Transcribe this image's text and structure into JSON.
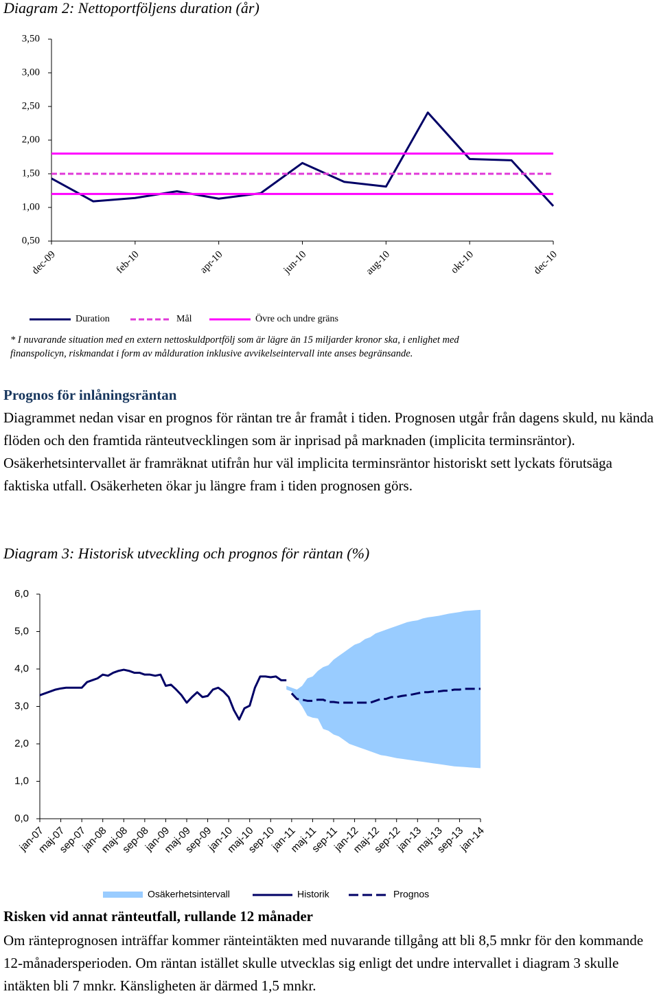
{
  "chart_data": [
    {
      "type": "line",
      "title": "Diagram 2: Nettoportföljens duration (år)",
      "categories": [
        "dec-09",
        null,
        "feb-10",
        null,
        "apr-10",
        null,
        "jun-10",
        null,
        "aug-10",
        null,
        "okt-10",
        null,
        "dec-10"
      ],
      "series": [
        {
          "name": "Duration",
          "color": "#000066",
          "style": "solid",
          "values": [
            1.43,
            1.09,
            1.14,
            1.24,
            1.13,
            1.21,
            1.66,
            1.38,
            1.31,
            2.41,
            1.72,
            1.7,
            1.02
          ]
        },
        {
          "name": "Mål",
          "color": "#e03ad8",
          "style": "dashed",
          "values": [
            1.5,
            1.5,
            1.5,
            1.5,
            1.5,
            1.5,
            1.5,
            1.5,
            1.5,
            1.5,
            1.5,
            1.5,
            1.5
          ]
        },
        {
          "name": "Övre och undre gräns",
          "color": "#ff00ff",
          "style": "solid",
          "values": [
            1.8,
            1.8,
            1.8,
            1.8,
            1.8,
            1.8,
            1.8,
            1.8,
            1.8,
            1.8,
            1.8,
            1.8,
            1.8
          ],
          "lower_values": [
            1.2,
            1.2,
            1.2,
            1.2,
            1.2,
            1.2,
            1.2,
            1.2,
            1.2,
            1.2,
            1.2,
            1.2,
            1.2
          ]
        }
      ],
      "ylim": [
        0.5,
        3.5
      ],
      "yticks": [
        {
          "value": 0.5,
          "label": "0,50"
        },
        {
          "value": 1,
          "label": "1,00"
        },
        {
          "value": 1.5,
          "label": "1,50"
        },
        {
          "value": 2,
          "label": "2,00"
        },
        {
          "value": 2.5,
          "label": "2,50"
        },
        {
          "value": 3,
          "label": "3,00"
        },
        {
          "value": 3.5,
          "label": "3,50"
        }
      ],
      "grid": false
    },
    {
      "type": "line",
      "title": "Diagram 3: Historisk utveckling och prognos för räntan (%)",
      "categories": [
        "jan-07",
        null,
        null,
        null,
        "maj-07",
        null,
        null,
        null,
        "sep-07",
        null,
        null,
        null,
        "jan-08",
        null,
        null,
        null,
        "maj-08",
        null,
        null,
        null,
        "sep-08",
        null,
        null,
        null,
        "jan-09",
        null,
        null,
        null,
        "maj-09",
        null,
        null,
        null,
        "sep-09",
        null,
        null,
        null,
        "jan-10",
        null,
        null,
        null,
        "maj-10",
        null,
        null,
        null,
        "sep-10",
        null,
        null,
        null,
        "jan-11",
        null,
        null,
        null,
        "maj-11",
        null,
        null,
        null,
        "sep-11",
        null,
        null,
        null,
        "jan-12",
        null,
        null,
        null,
        "maj-12",
        null,
        null,
        null,
        "sep-12",
        null,
        null,
        null,
        "jan-13",
        null,
        null,
        null,
        "maj-13",
        null,
        null,
        null,
        "sep-13",
        null,
        null,
        null,
        "jan-14"
      ],
      "series": [
        {
          "name": "Osäkerhetsintervall",
          "color": "#99ccff",
          "style": "area",
          "values": [
            null,
            null,
            null,
            null,
            null,
            null,
            null,
            null,
            null,
            null,
            null,
            null,
            null,
            null,
            null,
            null,
            null,
            null,
            null,
            null,
            null,
            null,
            null,
            null,
            null,
            null,
            null,
            null,
            null,
            null,
            null,
            null,
            null,
            null,
            null,
            null,
            null,
            null,
            null,
            null,
            null,
            null,
            null,
            null,
            null,
            null,
            null,
            3.55,
            3.5,
            3.45,
            3.55,
            3.75,
            3.8,
            3.95,
            4.05,
            4.1,
            4.25,
            4.35,
            4.45,
            4.55,
            4.65,
            4.7,
            4.8,
            4.85,
            4.95,
            5.0,
            5.05,
            5.1,
            5.15,
            5.2,
            5.25,
            5.28,
            5.3,
            5.35,
            5.38,
            5.4,
            5.42,
            5.45,
            5.48,
            5.5,
            5.52,
            5.55,
            5.56,
            5.57,
            5.58
          ],
          "lower": [
            null,
            null,
            null,
            null,
            null,
            null,
            null,
            null,
            null,
            null,
            null,
            null,
            null,
            null,
            null,
            null,
            null,
            null,
            null,
            null,
            null,
            null,
            null,
            null,
            null,
            null,
            null,
            null,
            null,
            null,
            null,
            null,
            null,
            null,
            null,
            null,
            null,
            null,
            null,
            null,
            null,
            null,
            null,
            null,
            null,
            null,
            null,
            3.45,
            3.4,
            3.2,
            3.0,
            2.75,
            2.7,
            2.68,
            2.4,
            2.35,
            2.25,
            2.2,
            2.1,
            2.0,
            1.95,
            1.9,
            1.85,
            1.8,
            1.75,
            1.7,
            1.68,
            1.65,
            1.62,
            1.6,
            1.58,
            1.56,
            1.54,
            1.52,
            1.5,
            1.48,
            1.46,
            1.44,
            1.42,
            1.4,
            1.39,
            1.38,
            1.37,
            1.36,
            1.35
          ]
        },
        {
          "name": "Historik",
          "color": "#000066",
          "style": "solid",
          "values": [
            3.3,
            3.35,
            3.4,
            3.45,
            3.48,
            3.5,
            3.5,
            3.5,
            3.5,
            3.65,
            3.7,
            3.75,
            3.85,
            3.82,
            3.9,
            3.95,
            3.98,
            3.95,
            3.9,
            3.9,
            3.85,
            3.85,
            3.82,
            3.85,
            3.55,
            3.58,
            3.45,
            3.3,
            3.1,
            3.25,
            3.38,
            3.25,
            3.28,
            3.45,
            3.5,
            3.4,
            3.25,
            2.9,
            2.65,
            2.95,
            3.02,
            3.5,
            3.8,
            3.8,
            3.78,
            3.8,
            3.7,
            3.7,
            null,
            null,
            null,
            null,
            null,
            null,
            null,
            null,
            null,
            null,
            null,
            null,
            null,
            null,
            null,
            null,
            null,
            null,
            null,
            null,
            null,
            null,
            null,
            null,
            null,
            null,
            null,
            null,
            null,
            null,
            null,
            null,
            null,
            null,
            null,
            null,
            null
          ]
        },
        {
          "name": "Prognos",
          "color": "#000066",
          "style": "dashed",
          "values": [
            null,
            null,
            null,
            null,
            null,
            null,
            null,
            null,
            null,
            null,
            null,
            null,
            null,
            null,
            null,
            null,
            null,
            null,
            null,
            null,
            null,
            null,
            null,
            null,
            null,
            null,
            null,
            null,
            null,
            null,
            null,
            null,
            null,
            null,
            null,
            null,
            null,
            null,
            null,
            null,
            null,
            null,
            null,
            null,
            null,
            null,
            null,
            null,
            3.35,
            3.2,
            3.18,
            3.15,
            3.15,
            3.18,
            3.18,
            3.12,
            3.12,
            3.1,
            3.1,
            3.1,
            3.1,
            3.1,
            3.1,
            3.1,
            3.15,
            3.2,
            3.2,
            3.25,
            3.25,
            3.28,
            3.3,
            3.32,
            3.35,
            3.38,
            3.38,
            3.4,
            3.4,
            3.42,
            3.42,
            3.45,
            3.45,
            3.47,
            3.47,
            3.47,
            3.47
          ]
        }
      ],
      "ylim": [
        0,
        6
      ],
      "yticks": [
        {
          "value": 0,
          "label": "0,0"
        },
        {
          "value": 1,
          "label": "1,0"
        },
        {
          "value": 2,
          "label": "2,0"
        },
        {
          "value": 3,
          "label": "3,0"
        },
        {
          "value": 4,
          "label": "4,0"
        },
        {
          "value": 5,
          "label": "5,0"
        },
        {
          "value": 6,
          "label": "6,0"
        }
      ],
      "grid": false
    }
  ],
  "document": {
    "note": "* I nuvarande situation med en extern nettoskuldportfölj som är lägre än 15 miljarder kronor ska, i enlighet med finanspolicyn, riskmandat i form av målduration inklusive avvikelseintervall inte anses begränsande.",
    "sections": [
      {
        "heading": "Prognos för inlåningsräntan",
        "text": "Diagrammet nedan visar en prognos för räntan tre år framåt i tiden. Prognosen utgår från dagens skuld, nu kända flöden och den framtida ränteutvecklingen som är inprisad på marknaden (implicita terminsräntor). Osäkerhetsintervallet är framräknat utifrån hur väl implicita terminsräntor historiskt sett lyckats förutsäga faktiska utfall. Osäkerheten ökar ju längre fram i tiden prognosen görs."
      },
      {
        "heading": "Risken vid annat ränteutfall, rullande 12 månader",
        "text": "Om ränteprognosen inträffar kommer ränteintäkten med nuvarande tillgång att bli 8,5 mnkr för den kommande 12-månadersperioden. Om räntan istället skulle utvecklas sig enligt det undre intervallet i diagram 3 skulle intäkten bli 7 mnkr. Känsligheten är därmed 1,5 mnkr."
      }
    ]
  }
}
